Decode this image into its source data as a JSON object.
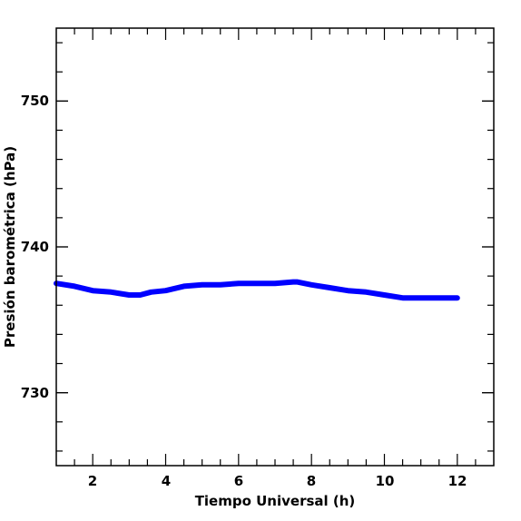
{
  "chart_data": {
    "type": "line",
    "xlabel": "Tiempo Universal (h)",
    "ylabel": "Presión barométrica (hPa)",
    "xlim": [
      1,
      13
    ],
    "ylim": [
      725,
      755
    ],
    "x_ticks": [
      2,
      4,
      6,
      8,
      10,
      12
    ],
    "x_tick_labels": [
      "2",
      "4",
      "6",
      "8",
      "10",
      "12"
    ],
    "y_ticks": [
      730,
      740,
      750
    ],
    "y_tick_labels": [
      "730",
      "740",
      "750"
    ],
    "grid": false,
    "legend": "none",
    "series": [
      {
        "color": "#0000ff",
        "x": [
          1.0,
          1.5,
          2.0,
          2.5,
          3.0,
          3.3,
          3.6,
          4.0,
          4.5,
          5.0,
          5.5,
          6.0,
          6.5,
          7.0,
          7.5,
          7.6,
          8.0,
          8.5,
          9.0,
          9.5,
          10.0,
          10.5,
          11.0,
          11.5,
          12.0
        ],
        "values": [
          737.5,
          737.3,
          737.0,
          736.9,
          736.7,
          736.7,
          736.9,
          737.0,
          737.3,
          737.4,
          737.4,
          737.5,
          737.5,
          737.5,
          737.6,
          737.6,
          737.4,
          737.2,
          737.0,
          736.9,
          736.7,
          736.5,
          736.5,
          736.5,
          736.5
        ]
      }
    ]
  }
}
